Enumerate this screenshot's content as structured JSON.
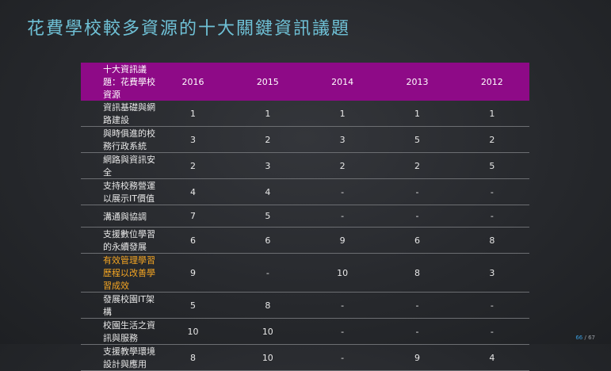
{
  "title": "花費學校較多資源的十大關鍵資訊議題",
  "table": {
    "headers": [
      "十大資訊議題：花費學校資源",
      "2016",
      "2015",
      "2014",
      "2013",
      "2012"
    ],
    "rows": [
      [
        "資訊基礎與網路建設",
        "1",
        "1",
        "1",
        "1",
        "1"
      ],
      [
        "與時俱進的校務行政系統",
        "3",
        "2",
        "3",
        "5",
        "2"
      ],
      [
        "網路與資訊安全",
        "2",
        "3",
        "2",
        "2",
        "5"
      ],
      [
        "支持校務營運以展示IT價值",
        "4",
        "4",
        "-",
        "-",
        "-"
      ],
      [
        "溝通與協調",
        "7",
        "5",
        "-",
        "-",
        "-"
      ],
      [
        "支援數位學習的永續發展",
        "6",
        "6",
        "9",
        "6",
        "8"
      ],
      [
        "有效管理學習歷程以改善學習成效",
        "9",
        "-",
        "10",
        "8",
        "3"
      ],
      [
        "發展校園IT架構",
        "5",
        "8",
        "-",
        "-",
        "-"
      ],
      [
        "校園生活之資訊與服務",
        "10",
        "10",
        "-",
        "-",
        "-"
      ],
      [
        "支援教學環境設計與應用",
        "8",
        "10",
        "-",
        "9",
        "4"
      ]
    ],
    "highlight_color": "#f5a623",
    "header_color": "#8e0a87"
  },
  "page": {
    "current": "66",
    "separator": " / ",
    "total": "67"
  }
}
